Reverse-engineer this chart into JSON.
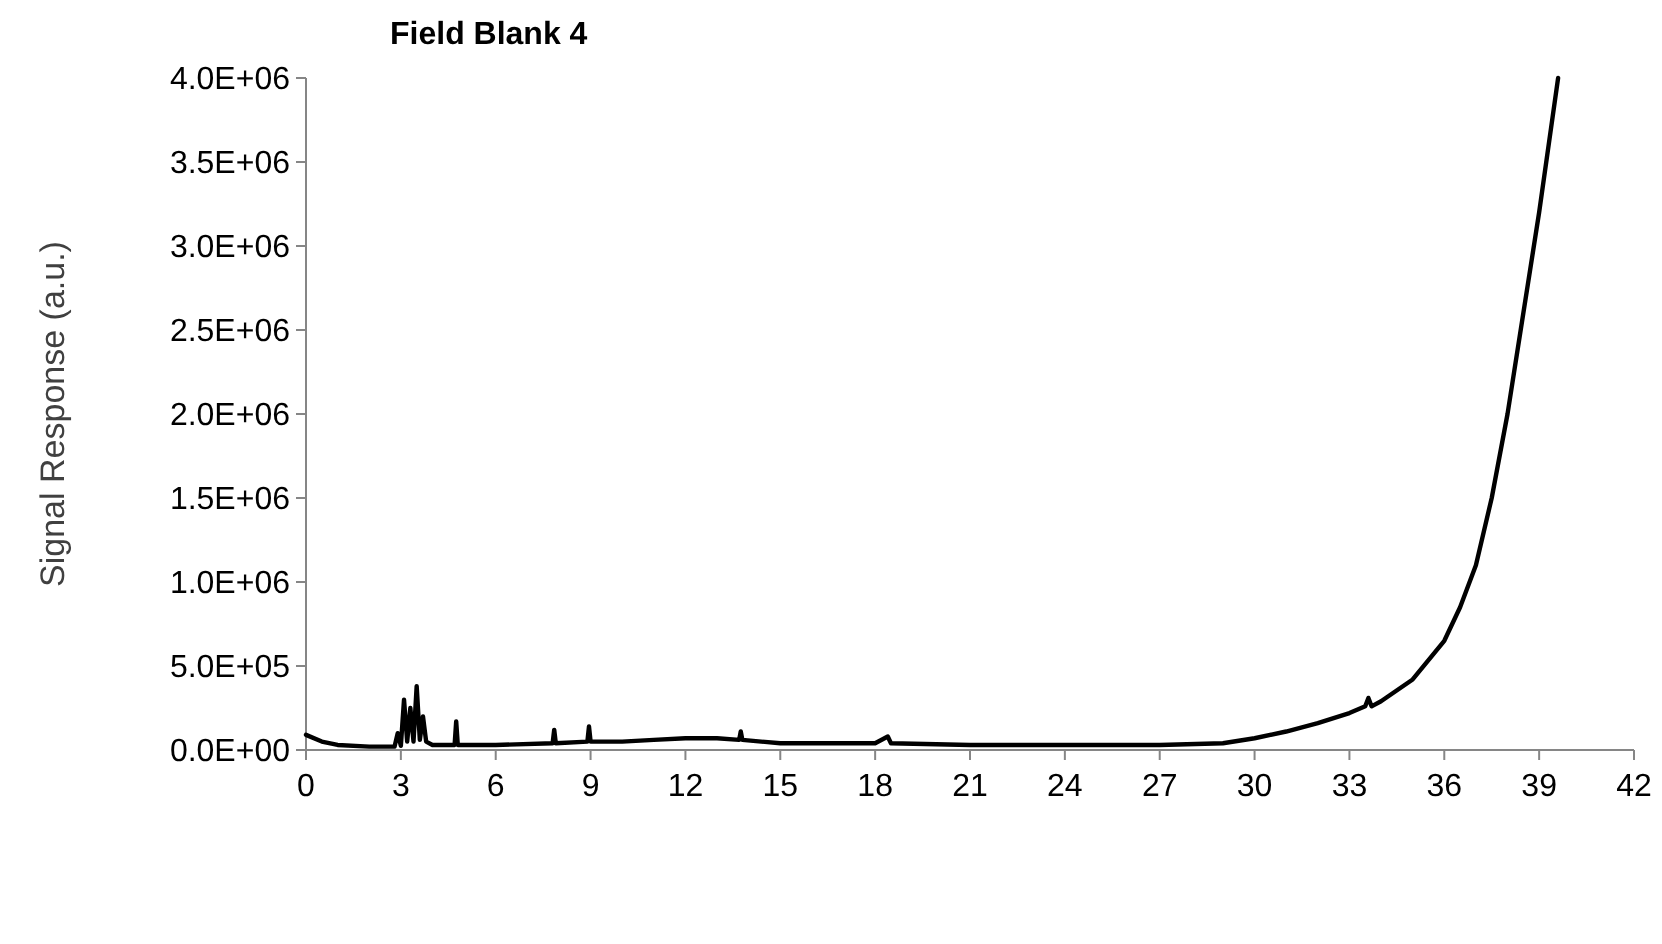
{
  "chart_data": {
    "type": "line",
    "title": "Field Blank 4",
    "ylabel": "Signal Response (a.u.)",
    "x": [
      0,
      0.5,
      1,
      2,
      2.8,
      2.9,
      3.0,
      3.1,
      3.2,
      3.3,
      3.4,
      3.5,
      3.6,
      3.7,
      3.8,
      4.0,
      4.7,
      4.75,
      4.8,
      6,
      7.8,
      7.85,
      7.9,
      8.9,
      8.95,
      9.0,
      10,
      11,
      12,
      13,
      13.7,
      13.75,
      13.8,
      15,
      18,
      18.4,
      18.5,
      21,
      24,
      27,
      29,
      30,
      31,
      32,
      33,
      33.5,
      33.6,
      33.7,
      34,
      35,
      36,
      36.5,
      37,
      37.5,
      38,
      38.5,
      39,
      39.6
    ],
    "series": [
      {
        "color": "#000000",
        "values": [
          90000,
          50000,
          30000,
          20000,
          20000,
          100000,
          25000,
          300000,
          50000,
          250000,
          50000,
          380000,
          60000,
          200000,
          50000,
          30000,
          30000,
          170000,
          30000,
          30000,
          40000,
          120000,
          40000,
          50000,
          140000,
          50000,
          50000,
          60000,
          70000,
          70000,
          60000,
          110000,
          60000,
          40000,
          40000,
          80000,
          40000,
          30000,
          30000,
          30000,
          40000,
          70000,
          110000,
          160000,
          220000,
          260000,
          310000,
          260000,
          290000,
          420000,
          650000,
          850000,
          1100000,
          1500000,
          2000000,
          2600000,
          3200000,
          4000000
        ]
      }
    ],
    "xlim": [
      0,
      42
    ],
    "xticks": [
      0,
      3,
      6,
      9,
      12,
      15,
      18,
      21,
      24,
      27,
      30,
      33,
      36,
      39,
      42
    ],
    "ylim": [
      0,
      4000000
    ],
    "yticks": [
      {
        "value": 0,
        "label": "0.0E+00"
      },
      {
        "value": 500000,
        "label": "5.0E+05"
      },
      {
        "value": 1000000,
        "label": "1.0E+06"
      },
      {
        "value": 1500000,
        "label": "1.5E+06"
      },
      {
        "value": 2000000,
        "label": "2.0E+06"
      },
      {
        "value": 2500000,
        "label": "2.5E+06"
      },
      {
        "value": 3000000,
        "label": "3.0E+06"
      },
      {
        "value": 3500000,
        "label": "3.5E+06"
      },
      {
        "value": 4000000,
        "label": "4.0E+06"
      }
    ],
    "grid": false,
    "marker": "none",
    "line_style": "solid"
  }
}
